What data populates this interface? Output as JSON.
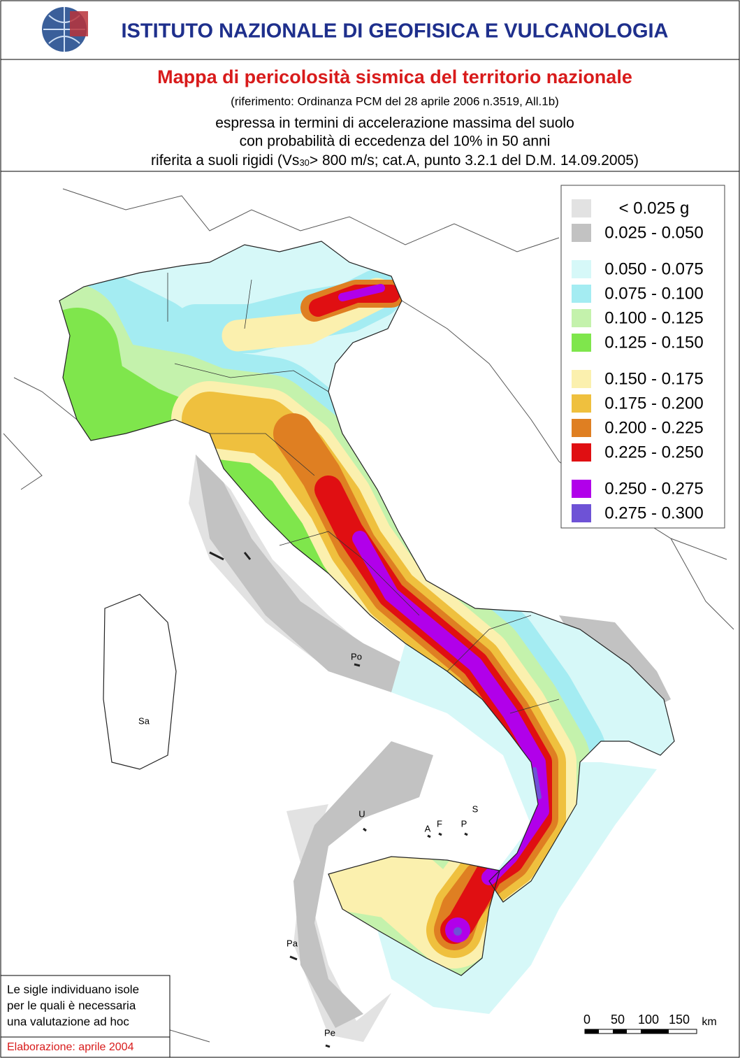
{
  "header": {
    "institute": "ISTITUTO NAZIONALE DI GEOFISICA E VULCANOLOGIA"
  },
  "title": "Mappa di pericolosità sismica del territorio nazionale",
  "reference": "(riferimento: Ordinanza PCM del 28 aprile 2006 n.3519, All.1b)",
  "subtitle": {
    "line1": "espressa in termini di accelerazione massima del suolo",
    "line2": "con probabilità di eccedenza del 10% in 50 anni",
    "line3_start": "riferita a suoli rigidi (Vs",
    "line3_sub": "30",
    "line3_end": "> 800 m/s; cat.A, punto 3.2.1 del D.M. 14.09.2005)"
  },
  "legend": {
    "groups": [
      [
        {
          "label": "< 0.025 g",
          "color": "#e2e2e2"
        },
        {
          "label": "0.025 - 0.050",
          "color": "#c2c2c2"
        }
      ],
      [
        {
          "label": "0.050 - 0.075",
          "color": "#d6f8f8"
        },
        {
          "label": "0.075 - 0.100",
          "color": "#a4ecf2"
        },
        {
          "label": "0.100 - 0.125",
          "color": "#c4f2ac"
        },
        {
          "label": "0.125 - 0.150",
          "color": "#7fe64c"
        }
      ],
      [
        {
          "label": "0.150 - 0.175",
          "color": "#fbf0ae"
        },
        {
          "label": "0.175 - 0.200",
          "color": "#efc03e"
        },
        {
          "label": "0.200 - 0.225",
          "color": "#df7f22"
        },
        {
          "label": "0.225 - 0.250",
          "color": "#e00f12"
        }
      ],
      [
        {
          "label": "0.250 - 0.275",
          "color": "#b100ea"
        },
        {
          "label": "0.275 - 0.300",
          "color": "#6e52d6"
        }
      ]
    ]
  },
  "islands": [
    "Po",
    "Sa",
    "U",
    "A",
    "F",
    "P",
    "S",
    "Pa",
    "Pe"
  ],
  "scale": {
    "labels": [
      "0",
      "50",
      "100",
      "150"
    ],
    "unit": "km"
  },
  "note": {
    "lines": [
      "Le sigle individuano isole",
      "per le quali è necessaria",
      "una valutazione ad hoc"
    ]
  },
  "footer": "Elaborazione: aprile 2004"
}
